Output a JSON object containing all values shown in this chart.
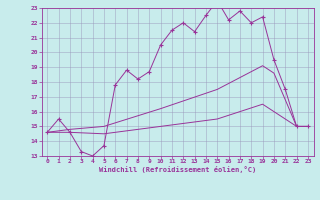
{
  "title": "",
  "xlabel": "Windchill (Refroidissement éolien,°C)",
  "bg_color": "#c8ecec",
  "line_color": "#993399",
  "grid_color": "#9999bb",
  "xlim": [
    -0.5,
    23.5
  ],
  "ylim": [
    13,
    23
  ],
  "xticks": [
    0,
    1,
    2,
    3,
    4,
    5,
    6,
    7,
    8,
    9,
    10,
    11,
    12,
    13,
    14,
    15,
    16,
    17,
    18,
    19,
    20,
    21,
    22,
    23
  ],
  "yticks": [
    13,
    14,
    15,
    16,
    17,
    18,
    19,
    20,
    21,
    22,
    23
  ],
  "series1_x": [
    0,
    1,
    2,
    3,
    4,
    5,
    6,
    7,
    8,
    9,
    10,
    11,
    12,
    13,
    14,
    15,
    16,
    17,
    18,
    19,
    20,
    21,
    22,
    23
  ],
  "series1_y": [
    14.6,
    15.5,
    14.6,
    13.3,
    13.0,
    13.7,
    17.8,
    18.8,
    18.2,
    18.7,
    20.5,
    21.5,
    22.0,
    21.4,
    22.5,
    23.5,
    22.2,
    22.8,
    22.0,
    22.4,
    19.5,
    17.5,
    15.0,
    15.0
  ],
  "series2_x": [
    0,
    2,
    5,
    10,
    15,
    19,
    20,
    22,
    23
  ],
  "series2_y": [
    14.6,
    14.8,
    15.0,
    16.2,
    17.5,
    19.1,
    18.6,
    15.0,
    15.0
  ],
  "series3_x": [
    0,
    2,
    5,
    10,
    15,
    19,
    20,
    22,
    23
  ],
  "series3_y": [
    14.6,
    14.6,
    14.5,
    15.0,
    15.5,
    16.5,
    16.0,
    15.0,
    15.0
  ]
}
